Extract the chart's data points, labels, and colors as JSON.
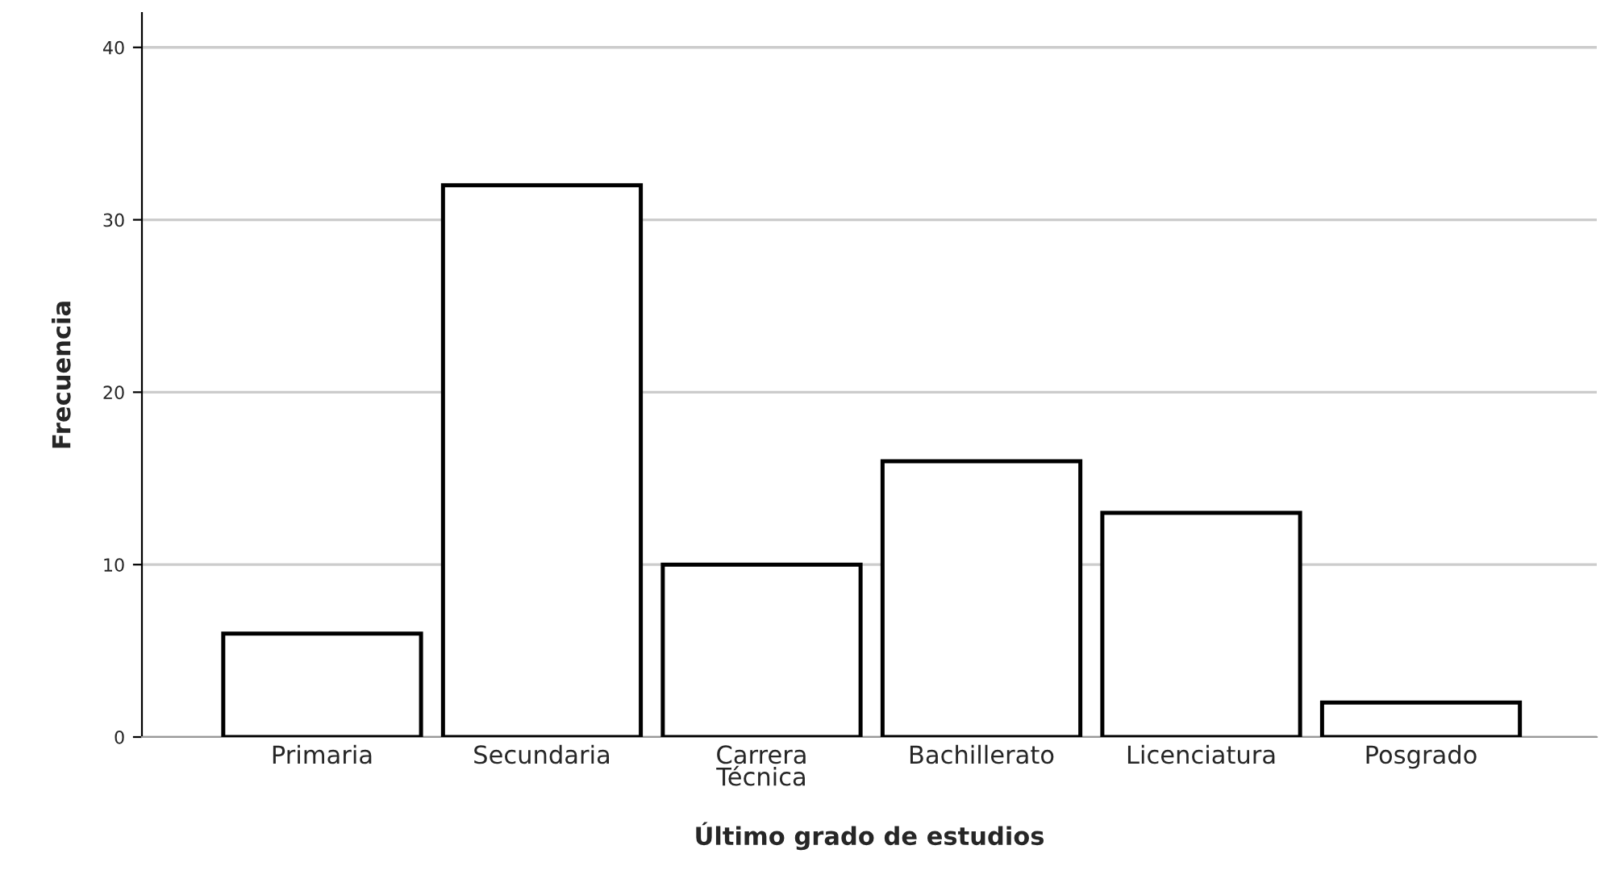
{
  "chart_data": {
    "type": "bar",
    "xlabel": "Último grado de estudios",
    "ylabel": "Frecuencia",
    "categories": [
      "Primaria",
      "Secundaria",
      "Carrera Técnica",
      "Bachillerato",
      "Licenciatura",
      "Posgrado"
    ],
    "values": [
      6,
      32,
      10,
      16,
      13,
      2
    ],
    "color": "#ffffff",
    "ylim": [
      0,
      42
    ],
    "yticks": [
      0,
      10,
      20,
      30,
      40
    ],
    "grid": "y"
  }
}
